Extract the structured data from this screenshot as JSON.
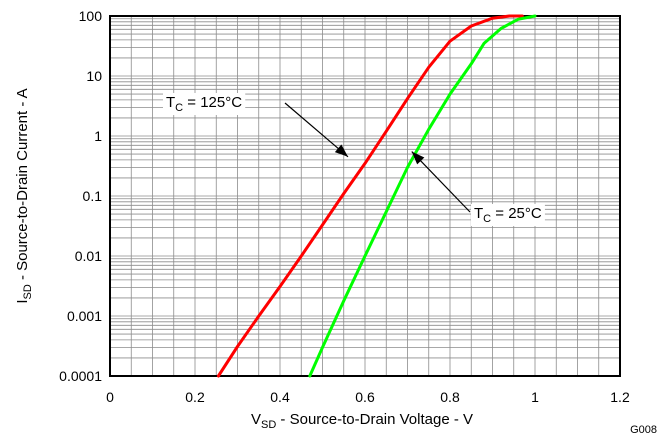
{
  "chart_data": {
    "type": "line",
    "xlabel": {
      "main": "V",
      "sub": "SD",
      "rest": " - Source-to-Drain Voltage - V"
    },
    "ylabel": {
      "main": "I",
      "sub": "SD",
      "rest": " - Source-to-Drain Current - A"
    },
    "xlim": [
      0,
      1.2
    ],
    "ylim": [
      0.0001,
      100
    ],
    "yscale": "log",
    "grid": true,
    "x_ticks": [
      {
        "value": 0,
        "label": "0"
      },
      {
        "value": 0.2,
        "label": "0.2"
      },
      {
        "value": 0.4,
        "label": "0.4"
      },
      {
        "value": 0.6,
        "label": "0.6"
      },
      {
        "value": 0.8,
        "label": "0.8"
      },
      {
        "value": 1.0,
        "label": "1"
      },
      {
        "value": 1.2,
        "label": "1.2"
      }
    ],
    "y_ticks": [
      {
        "value": 0.0001,
        "label": "0.0001"
      },
      {
        "value": 0.001,
        "label": "0.001"
      },
      {
        "value": 0.01,
        "label": "0.01"
      },
      {
        "value": 0.1,
        "label": "0.1"
      },
      {
        "value": 1,
        "label": "1"
      },
      {
        "value": 10,
        "label": "10"
      },
      {
        "value": 100,
        "label": "100"
      }
    ],
    "series": [
      {
        "color": "#ff0000",
        "x": [
          0.255,
          0.3,
          0.35,
          0.4,
          0.45,
          0.5,
          0.55,
          0.6,
          0.65,
          0.7,
          0.75,
          0.8,
          0.85,
          0.9,
          0.94,
          0.97
        ],
        "y": [
          0.0001,
          0.00031,
          0.001,
          0.0031,
          0.01,
          0.033,
          0.11,
          0.35,
          1.2,
          4.2,
          14,
          38,
          68,
          92,
          100,
          100
        ]
      },
      {
        "color": "#00ff00",
        "x": [
          0.47,
          0.5,
          0.55,
          0.6,
          0.65,
          0.7,
          0.75,
          0.8,
          0.85,
          0.88,
          0.92,
          0.96,
          1.0
        ],
        "y": [
          0.0001,
          0.0003,
          0.0018,
          0.01,
          0.055,
          0.3,
          1.3,
          5,
          16,
          35,
          62,
          88,
          100
        ]
      }
    ],
    "annotations": [
      {
        "prefix": "T",
        "sub": "C",
        "suffix": " = 125°C",
        "target": {
          "x": 0.56,
          "y": 0.45
        }
      },
      {
        "prefix": "T",
        "sub": "C",
        "suffix": " = 25°C",
        "target": {
          "x": 0.71,
          "y": 0.55
        }
      }
    ],
    "figure_id": "G008"
  }
}
